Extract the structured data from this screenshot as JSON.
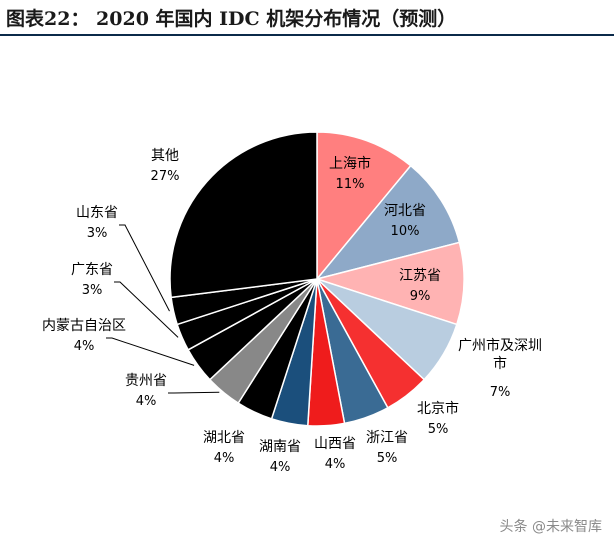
{
  "figure_title": "图表22：  2020 年国内 IDC 机架分布情况（预测）",
  "watermark": "头条 @未来智库",
  "chart_data": {
    "type": "pie",
    "title": "",
    "unit": "%",
    "legend": "none (labels beside slices)",
    "slices": [
      {
        "label": "上海市",
        "value": 11,
        "display": "11%",
        "color": "#ff7f7f"
      },
      {
        "label": "河北省",
        "value": 10,
        "display": "10%",
        "color": "#8ea9c8"
      },
      {
        "label": "江苏省",
        "value": 9,
        "display": "9%",
        "color": "#ffb3b3"
      },
      {
        "label": "广州市及深圳市",
        "value": 7,
        "display": "7%",
        "color": "#b9cde0"
      },
      {
        "label": "北京市",
        "value": 5,
        "display": "5%",
        "color": "#f53030"
      },
      {
        "label": "浙江省",
        "value": 5,
        "display": "5%",
        "color": "#3a6b94"
      },
      {
        "label": "山西省",
        "value": 4,
        "display": "4%",
        "color": "#ef1c1c"
      },
      {
        "label": "湖南省",
        "value": 4,
        "display": "4%",
        "color": "#1b4f7c"
      },
      {
        "label": "湖北省",
        "value": 4,
        "display": "4%",
        "color": "#000000"
      },
      {
        "label": "贵州省",
        "value": 4,
        "display": "4%",
        "color": "#888888"
      },
      {
        "label": "内蒙古自治区",
        "value": 4,
        "display": "4%",
        "color": "#000000"
      },
      {
        "label": "广东省",
        "value": 3,
        "display": "3%",
        "color": "#000000"
      },
      {
        "label": "山东省",
        "value": 3,
        "display": "3%",
        "color": "#000000"
      },
      {
        "label": "其他",
        "value": 27,
        "display": "27%",
        "color": "#000000"
      }
    ]
  }
}
